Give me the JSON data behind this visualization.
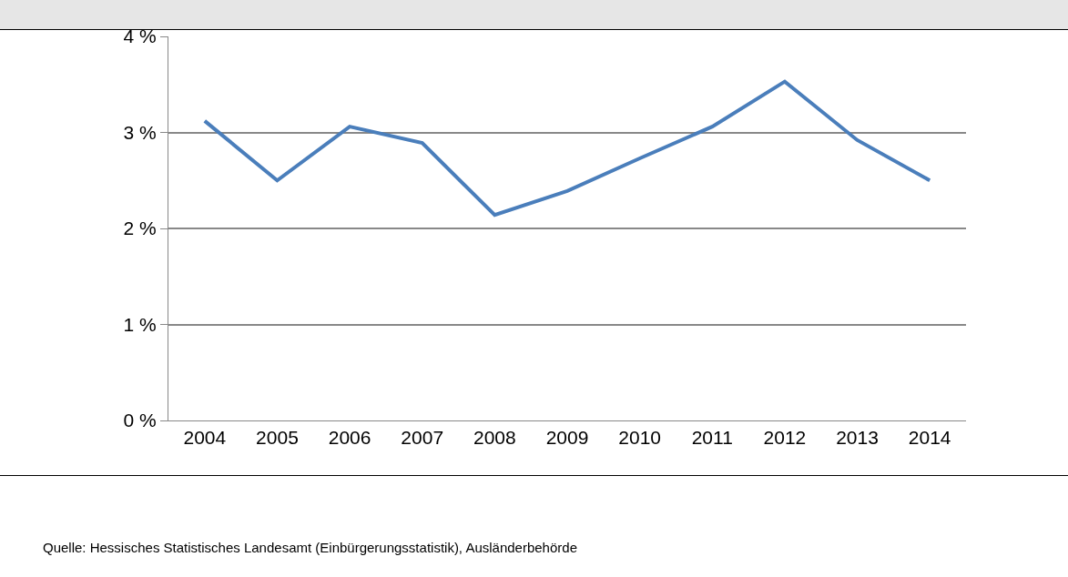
{
  "chart_data": {
    "type": "line",
    "categories": [
      "2004",
      "2005",
      "2006",
      "2007",
      "2008",
      "2009",
      "2010",
      "2011",
      "2012",
      "2013",
      "2014"
    ],
    "series": [
      {
        "color": "#4a7ebb",
        "values": [
          3.12,
          2.5,
          3.06,
          2.89,
          2.14,
          2.39,
          2.73,
          3.06,
          3.53,
          2.92,
          2.5
        ]
      }
    ],
    "ylim": [
      0,
      4
    ],
    "yticks": [
      {
        "value": 0,
        "label": "0 %"
      },
      {
        "value": 1,
        "label": "1 %"
      },
      {
        "value": 2,
        "label": "2 %"
      },
      {
        "value": 3,
        "label": "3 %"
      },
      {
        "value": 4,
        "label": "4 %"
      }
    ],
    "grid": "y",
    "legend": false,
    "marker": "none",
    "line_style": "solid",
    "annotations": [
      "Quelle: Hessisches Statistisches Landesamt (Einbürgerungsstatistik), Ausländerbehörde"
    ]
  }
}
